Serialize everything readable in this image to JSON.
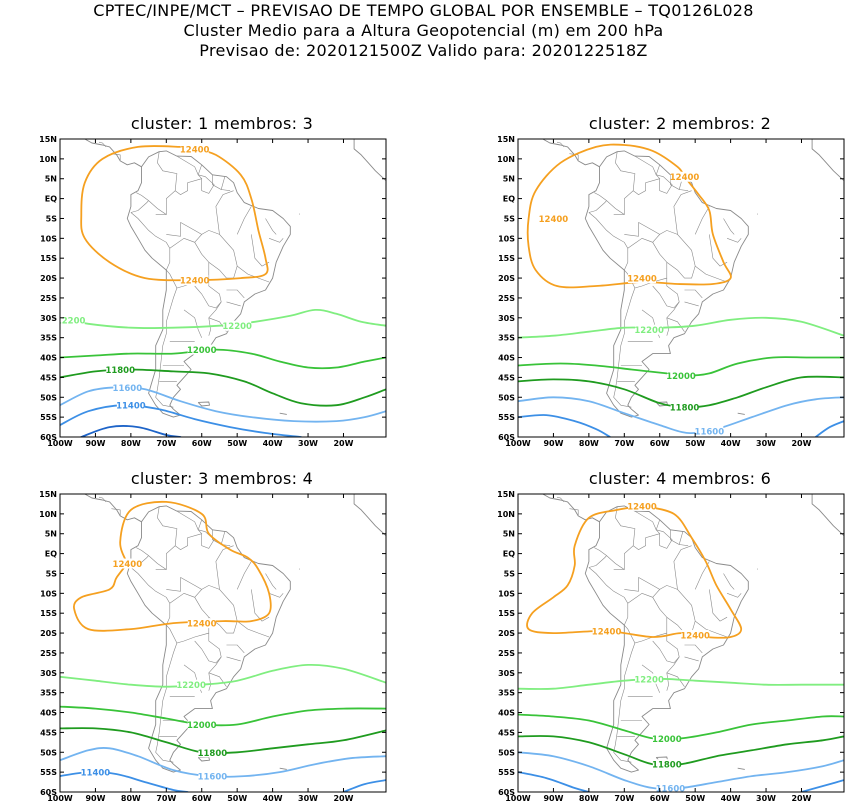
{
  "header": {
    "line1": "CPTEC/INPE/MCT – PREVISAO DE TEMPO GLOBAL POR ENSEMBLE – TQ0126L028",
    "line2": "Cluster Medio para a Altura Geopotencial (m) em 200 hPa",
    "line3": "Previsao de: 2020121500Z    Valido para: 2020122518Z"
  },
  "axes": {
    "lat_labels": [
      "15N",
      "10N",
      "5N",
      "EQ",
      "5S",
      "10S",
      "15S",
      "20S",
      "25S",
      "30S",
      "35S",
      "40S",
      "45S",
      "50S",
      "55S",
      "60S"
    ],
    "lon_labels": [
      "100W",
      "90W",
      "80W",
      "70W",
      "60W",
      "50W",
      "40W",
      "30W",
      "20W"
    ]
  },
  "colors": {
    "c12400": "#f5a020",
    "c12200": "#80ee80",
    "c12000": "#39c339",
    "c11800": "#1f9b1f",
    "c11600": "#73b4f0",
    "c11400": "#3c8fe6",
    "c11200": "#1e64c8",
    "coast": "#8a8a8a"
  },
  "panels": [
    {
      "title": "cluster: 1   membros: 3",
      "labels": [
        {
          "text": "12400",
          "lon": -62,
          "lat": 12.5,
          "color": "c12400"
        },
        {
          "text": "12400",
          "lon": -62,
          "lat": -20.5,
          "color": "c12400"
        },
        {
          "text": "12200",
          "lon": -97,
          "lat": -30.5,
          "color": "c12200"
        },
        {
          "text": "12200",
          "lon": -50,
          "lat": -32,
          "color": "c12200"
        },
        {
          "text": "12000",
          "lon": -60,
          "lat": -38,
          "color": "c12000"
        },
        {
          "text": "11800",
          "lon": -83,
          "lat": -43,
          "color": "c11800"
        },
        {
          "text": "11600",
          "lon": -81,
          "lat": -47.5,
          "color": "c11600"
        },
        {
          "text": "11400",
          "lon": -80,
          "lat": -52,
          "color": "c11400"
        }
      ]
    },
    {
      "title": "cluster: 2   membros: 2",
      "labels": [
        {
          "text": "12400",
          "lon": -53,
          "lat": 5.5,
          "color": "c12400"
        },
        {
          "text": "12400",
          "lon": -90,
          "lat": -5,
          "color": "c12400"
        },
        {
          "text": "12400",
          "lon": -65,
          "lat": -20,
          "color": "c12400"
        },
        {
          "text": "12200",
          "lon": -63,
          "lat": -33,
          "color": "c12200"
        },
        {
          "text": "12000",
          "lon": -54,
          "lat": -44.5,
          "color": "c12000"
        },
        {
          "text": "11800",
          "lon": -53,
          "lat": -52.5,
          "color": "c11800"
        },
        {
          "text": "11600",
          "lon": -46,
          "lat": -58.5,
          "color": "c11600"
        }
      ]
    },
    {
      "title": "cluster: 3   membros: 4",
      "labels": [
        {
          "text": "12400",
          "lon": -81,
          "lat": -2.5,
          "color": "c12400"
        },
        {
          "text": "12400",
          "lon": -60,
          "lat": -17.5,
          "color": "c12400"
        },
        {
          "text": "12200",
          "lon": -63,
          "lat": -33,
          "color": "c12200"
        },
        {
          "text": "12000",
          "lon": -60,
          "lat": -43,
          "color": "c12000"
        },
        {
          "text": "11800",
          "lon": -57,
          "lat": -50,
          "color": "c11800"
        },
        {
          "text": "11600",
          "lon": -57,
          "lat": -56,
          "color": "c11600"
        },
        {
          "text": "11400",
          "lon": -90,
          "lat": -55,
          "color": "c11400"
        }
      ]
    },
    {
      "title": "cluster: 4   membros: 6",
      "labels": [
        {
          "text": "12400",
          "lon": -65,
          "lat": 12,
          "color": "c12400"
        },
        {
          "text": "12400",
          "lon": -75,
          "lat": -19.5,
          "color": "c12400"
        },
        {
          "text": "12400",
          "lon": -50,
          "lat": -20.5,
          "color": "c12400"
        },
        {
          "text": "12200",
          "lon": -63,
          "lat": -31.5,
          "color": "c12200"
        },
        {
          "text": "12000",
          "lon": -58,
          "lat": -46.5,
          "color": "c12000"
        },
        {
          "text": "11800",
          "lon": -58,
          "lat": -53,
          "color": "c11800"
        },
        {
          "text": "11600",
          "lon": -57,
          "lat": -59,
          "color": "c11600"
        }
      ]
    }
  ]
}
